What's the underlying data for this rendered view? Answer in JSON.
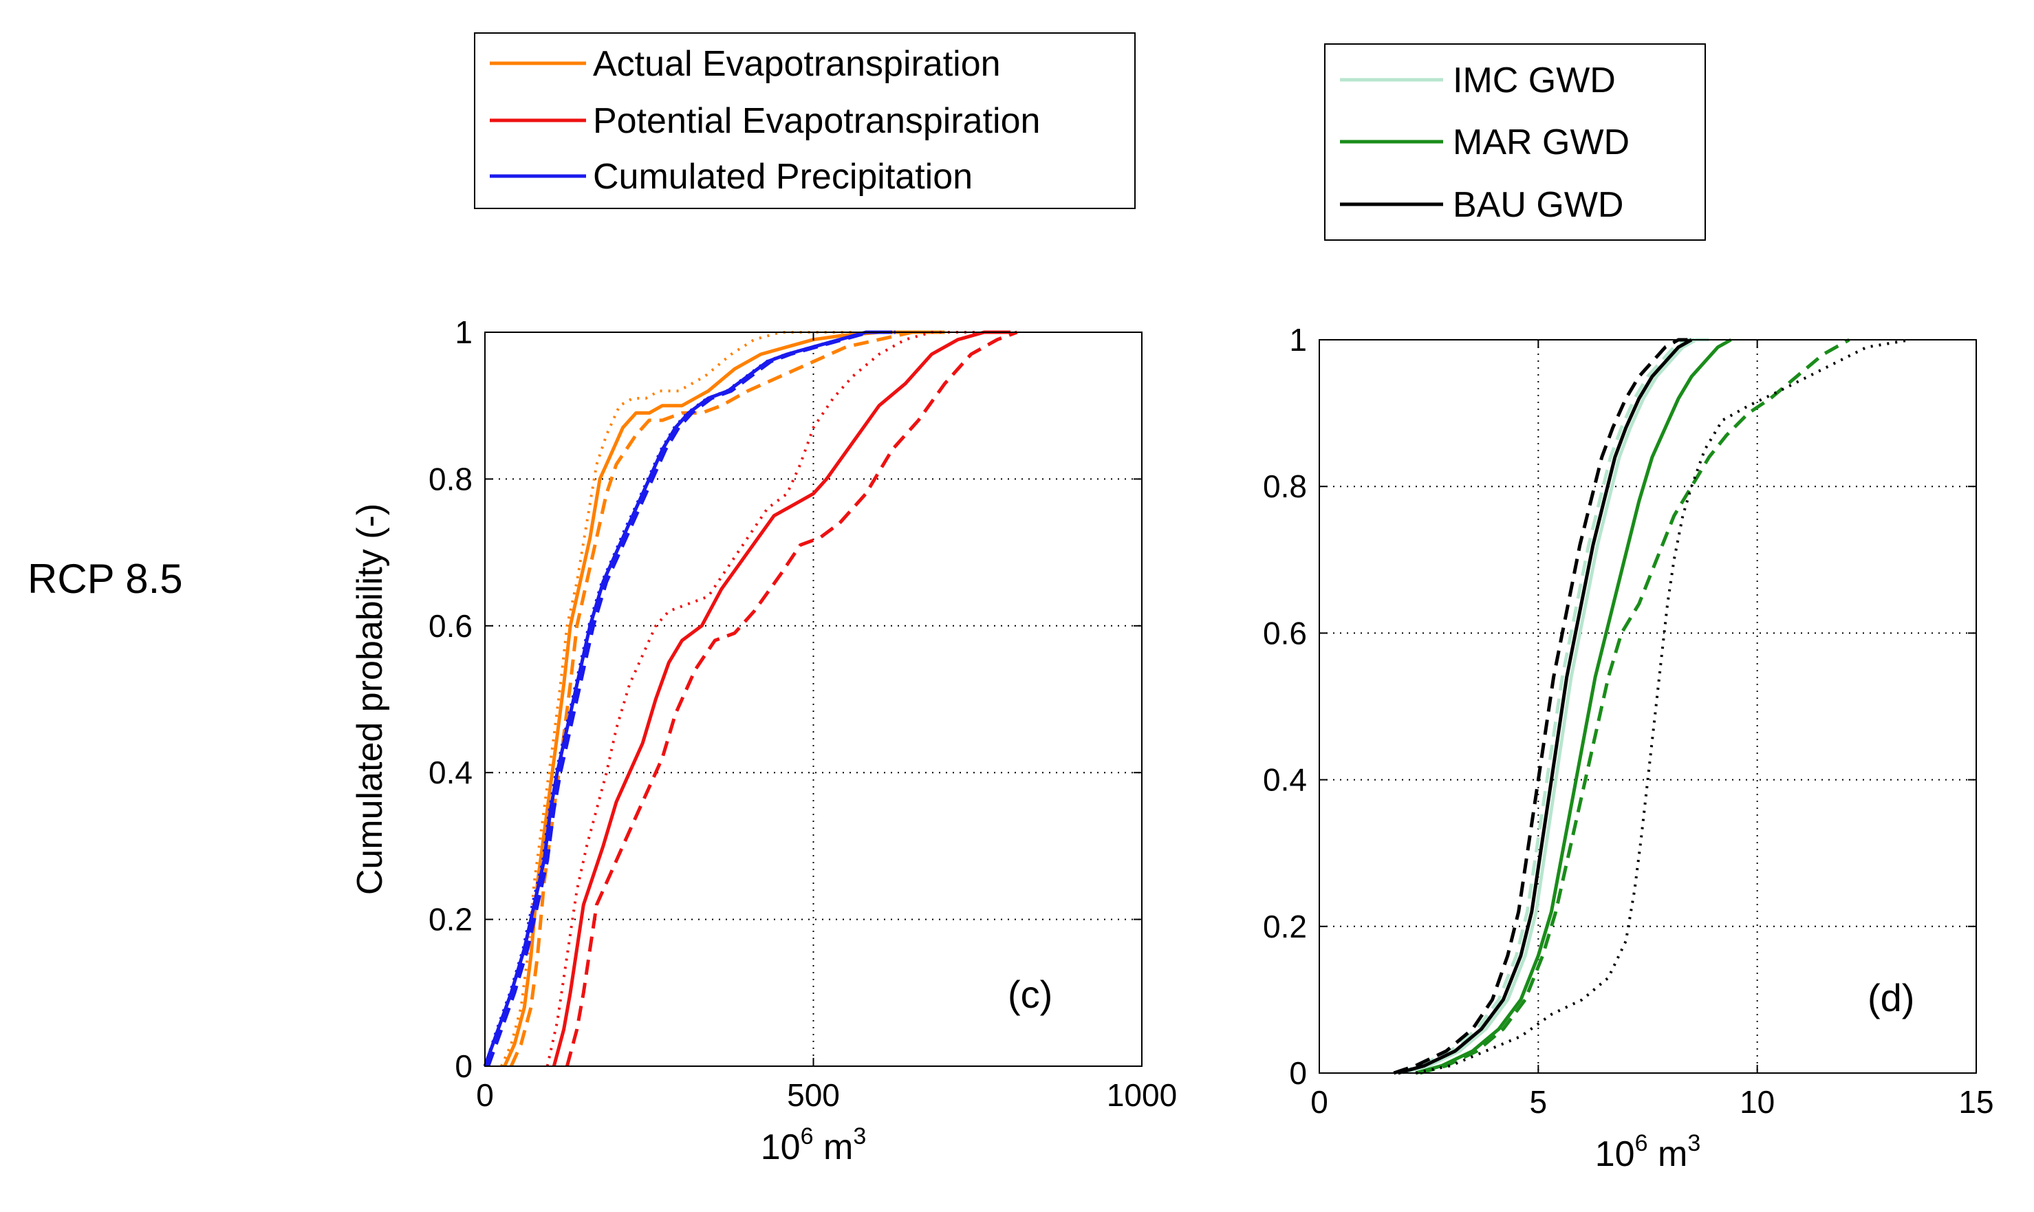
{
  "row_label": "RCP 8.5",
  "chart_data": [
    {
      "type": "line",
      "panel_label": "(c)",
      "xlabel": "10",
      "xlabel_exp": "6",
      "xlabel_unit": "m",
      "xlabel_unit_exp": "3",
      "ylabel": "Cumulated probability (-)",
      "xlim": [
        0,
        1000
      ],
      "ylim": [
        0,
        1
      ],
      "xticks": [
        0,
        500,
        1000
      ],
      "xtick_labels": [
        "0",
        "500",
        "1000"
      ],
      "yticks": [
        0,
        0.2,
        0.4,
        0.6,
        0.8,
        1
      ],
      "ytick_labels": [
        "0",
        "0.2",
        "0.4",
        "0.6",
        "0.8",
        "1"
      ],
      "grid": true,
      "legend": [
        {
          "label": "Actual Evapotranspiration",
          "color": "#ff8000"
        },
        {
          "label": "Potential Evapotranspiration",
          "color": "#ee1111"
        },
        {
          "label": "Cumulated Precipitation",
          "color": "#1a1aee"
        }
      ],
      "series": [
        {
          "name": "AET solid",
          "color": "#ff8000",
          "dash": "solid",
          "x": [
            30,
            45,
            60,
            70,
            80,
            95,
            110,
            120,
            130,
            145,
            160,
            175,
            190,
            200,
            210,
            230,
            250,
            270,
            300,
            320,
            340,
            380,
            420,
            460,
            500,
            540,
            600,
            650,
            700
          ],
          "y": [
            0,
            0.03,
            0.08,
            0.15,
            0.25,
            0.35,
            0.45,
            0.52,
            0.6,
            0.66,
            0.72,
            0.8,
            0.83,
            0.85,
            0.87,
            0.89,
            0.89,
            0.9,
            0.9,
            0.91,
            0.92,
            0.95,
            0.97,
            0.98,
            0.99,
            0.995,
            1,
            1,
            1
          ]
        },
        {
          "name": "AET dashed",
          "color": "#ff8000",
          "dash": "dashed",
          "x": [
            40,
            55,
            70,
            80,
            90,
            105,
            120,
            130,
            140,
            155,
            170,
            185,
            200,
            215,
            230,
            250,
            270,
            300,
            330,
            360,
            400,
            450,
            500,
            550,
            600,
            650,
            700
          ],
          "y": [
            0,
            0.03,
            0.08,
            0.15,
            0.25,
            0.35,
            0.45,
            0.52,
            0.6,
            0.66,
            0.72,
            0.78,
            0.82,
            0.84,
            0.86,
            0.88,
            0.88,
            0.89,
            0.89,
            0.9,
            0.92,
            0.94,
            0.96,
            0.98,
            0.99,
            1,
            1
          ]
        },
        {
          "name": "AET dotted",
          "color": "#ff8000",
          "dash": "dotted",
          "x": [
            25,
            40,
            55,
            65,
            75,
            90,
            105,
            115,
            125,
            140,
            155,
            170,
            185,
            195,
            205,
            225,
            245,
            265,
            295,
            315,
            335,
            375,
            410,
            450,
            490,
            530,
            560
          ],
          "y": [
            0,
            0.03,
            0.08,
            0.15,
            0.25,
            0.35,
            0.45,
            0.52,
            0.6,
            0.66,
            0.74,
            0.82,
            0.86,
            0.88,
            0.9,
            0.91,
            0.91,
            0.92,
            0.92,
            0.93,
            0.94,
            0.97,
            0.99,
            1,
            1,
            1,
            1
          ]
        },
        {
          "name": "PET solid",
          "color": "#ee1111",
          "dash": "solid",
          "x": [
            105,
            120,
            130,
            140,
            150,
            165,
            180,
            200,
            220,
            240,
            260,
            280,
            300,
            330,
            360,
            400,
            440,
            480,
            500,
            520,
            560,
            600,
            640,
            680,
            720,
            760,
            800
          ],
          "y": [
            0,
            0.05,
            0.1,
            0.16,
            0.22,
            0.26,
            0.3,
            0.36,
            0.4,
            0.44,
            0.5,
            0.55,
            0.58,
            0.6,
            0.65,
            0.7,
            0.75,
            0.77,
            0.78,
            0.8,
            0.85,
            0.9,
            0.93,
            0.97,
            0.99,
            1,
            1
          ]
        },
        {
          "name": "PET dashed",
          "color": "#ee1111",
          "dash": "dashed",
          "x": [
            125,
            140,
            150,
            160,
            170,
            190,
            210,
            230,
            250,
            270,
            290,
            320,
            350,
            380,
            410,
            450,
            480,
            510,
            540,
            580,
            620,
            660,
            700,
            740,
            780,
            810
          ],
          "y": [
            0,
            0.05,
            0.1,
            0.16,
            0.22,
            0.26,
            0.3,
            0.34,
            0.38,
            0.42,
            0.48,
            0.54,
            0.58,
            0.59,
            0.62,
            0.67,
            0.71,
            0.72,
            0.74,
            0.78,
            0.84,
            0.88,
            0.93,
            0.97,
            0.99,
            1
          ]
        },
        {
          "name": "PET dotted",
          "color": "#ee1111",
          "dash": "dotted",
          "x": [
            95,
            110,
            120,
            130,
            140,
            155,
            170,
            185,
            200,
            220,
            240,
            260,
            280,
            310,
            340,
            370,
            400,
            430,
            460,
            480,
            500,
            530,
            560,
            600,
            640,
            680,
            720,
            750
          ],
          "y": [
            0,
            0.06,
            0.12,
            0.18,
            0.24,
            0.3,
            0.35,
            0.4,
            0.46,
            0.52,
            0.56,
            0.6,
            0.62,
            0.63,
            0.64,
            0.68,
            0.72,
            0.76,
            0.78,
            0.82,
            0.87,
            0.91,
            0.94,
            0.97,
            0.99,
            1,
            1,
            1
          ]
        },
        {
          "name": "P solid",
          "color": "#1a1aee",
          "dash": "solid",
          "x": [
            0,
            20,
            40,
            60,
            75,
            90,
            100,
            110,
            120,
            130,
            140,
            150,
            160,
            170,
            180,
            190,
            200,
            215,
            230,
            250,
            270,
            290,
            310,
            340,
            370,
            400,
            430,
            460,
            500,
            540,
            580,
            620
          ],
          "y": [
            0,
            0.05,
            0.1,
            0.16,
            0.22,
            0.28,
            0.35,
            0.4,
            0.44,
            0.48,
            0.52,
            0.56,
            0.6,
            0.63,
            0.66,
            0.68,
            0.7,
            0.73,
            0.76,
            0.8,
            0.84,
            0.87,
            0.89,
            0.91,
            0.92,
            0.94,
            0.96,
            0.97,
            0.98,
            0.99,
            1,
            1
          ]
        },
        {
          "name": "P dashed",
          "color": "#1a1aee",
          "dash": "dashed",
          "x": [
            5,
            25,
            45,
            65,
            80,
            95,
            105,
            115,
            125,
            135,
            145,
            155,
            165,
            175,
            185,
            195,
            205,
            220,
            235,
            255,
            275,
            295,
            315,
            345,
            375,
            405,
            435,
            465,
            505,
            545,
            585,
            625
          ],
          "y": [
            0,
            0.05,
            0.1,
            0.16,
            0.22,
            0.28,
            0.35,
            0.4,
            0.44,
            0.48,
            0.52,
            0.56,
            0.6,
            0.63,
            0.66,
            0.68,
            0.7,
            0.73,
            0.76,
            0.8,
            0.84,
            0.87,
            0.89,
            0.91,
            0.92,
            0.94,
            0.96,
            0.97,
            0.98,
            0.99,
            1,
            1
          ]
        },
        {
          "name": "P dotted",
          "color": "#1a1aee",
          "dash": "dotted",
          "x": [
            0,
            18,
            38,
            58,
            72,
            88,
            98,
            108,
            118,
            128,
            138,
            148,
            158,
            168,
            178,
            188,
            198,
            212,
            228,
            248,
            268,
            288,
            308,
            338,
            368,
            398,
            428,
            458,
            498,
            538,
            578,
            618
          ],
          "y": [
            0,
            0.05,
            0.1,
            0.16,
            0.22,
            0.28,
            0.35,
            0.4,
            0.44,
            0.48,
            0.52,
            0.56,
            0.6,
            0.63,
            0.66,
            0.68,
            0.7,
            0.73,
            0.76,
            0.8,
            0.84,
            0.87,
            0.89,
            0.91,
            0.92,
            0.94,
            0.96,
            0.97,
            0.98,
            0.99,
            1,
            1
          ]
        }
      ]
    },
    {
      "type": "line",
      "panel_label": "(d)",
      "xlabel": "10",
      "xlabel_exp": "6",
      "xlabel_unit": "m",
      "xlabel_unit_exp": "3",
      "ylabel": "",
      "xlim": [
        0,
        15
      ],
      "ylim": [
        0,
        1
      ],
      "xticks": [
        0,
        5,
        10,
        15
      ],
      "xtick_labels": [
        "0",
        "5",
        "10",
        "15"
      ],
      "yticks": [
        0,
        0.2,
        0.4,
        0.6,
        0.8,
        1
      ],
      "ytick_labels": [
        "0",
        "0.2",
        "0.4",
        "0.6",
        "0.8",
        "1"
      ],
      "grid": true,
      "legend": [
        {
          "label": "IMC GWD",
          "color": "#b8e6cf"
        },
        {
          "label": "MAR GWD",
          "color": "#1a8c1a"
        },
        {
          "label": "BAU GWD",
          "color": "#000000"
        }
      ],
      "series": [
        {
          "name": "IMC solid",
          "color": "#b8e6cf",
          "dash": "solid",
          "x": [
            1.9,
            2.5,
            3.2,
            3.8,
            4.3,
            4.7,
            4.95,
            5.15,
            5.35,
            5.55,
            5.75,
            5.95,
            6.15,
            6.35,
            6.6,
            6.85,
            7.1,
            7.4,
            7.7,
            8.0,
            8.3,
            8.6,
            8.9
          ],
          "y": [
            0,
            0.01,
            0.03,
            0.06,
            0.1,
            0.16,
            0.22,
            0.3,
            0.38,
            0.46,
            0.54,
            0.6,
            0.66,
            0.72,
            0.78,
            0.84,
            0.88,
            0.92,
            0.95,
            0.97,
            0.99,
            1,
            1
          ]
        },
        {
          "name": "IMC dashed",
          "color": "#b8e6cf",
          "dash": "dashed",
          "x": [
            1.8,
            2.3,
            3.0,
            3.6,
            4.1,
            4.5,
            4.75,
            4.95,
            5.15,
            5.35,
            5.55,
            5.75,
            5.95,
            6.15,
            6.4,
            6.65,
            6.9,
            7.2,
            7.5,
            7.8,
            8.1,
            8.4,
            8.7
          ],
          "y": [
            0,
            0.01,
            0.03,
            0.06,
            0.1,
            0.16,
            0.22,
            0.3,
            0.38,
            0.46,
            0.54,
            0.6,
            0.66,
            0.72,
            0.78,
            0.84,
            0.88,
            0.92,
            0.95,
            0.97,
            0.99,
            1,
            1
          ]
        },
        {
          "name": "MAR solid",
          "color": "#1a8c1a",
          "dash": "solid",
          "x": [
            2.2,
            2.8,
            3.5,
            4.1,
            4.6,
            5.0,
            5.3,
            5.55,
            5.8,
            6.05,
            6.3,
            6.55,
            6.8,
            7.05,
            7.3,
            7.6,
            7.9,
            8.2,
            8.5,
            8.8,
            9.1,
            9.4
          ],
          "y": [
            0,
            0.01,
            0.03,
            0.06,
            0.1,
            0.16,
            0.22,
            0.3,
            0.38,
            0.46,
            0.54,
            0.6,
            0.66,
            0.72,
            0.78,
            0.84,
            0.88,
            0.92,
            0.95,
            0.97,
            0.99,
            1
          ]
        },
        {
          "name": "MAR dashed",
          "color": "#1a8c1a",
          "dash": "dashed",
          "x": [
            2.3,
            2.9,
            3.6,
            4.2,
            4.7,
            5.1,
            5.4,
            5.7,
            6.0,
            6.3,
            6.6,
            6.9,
            7.3,
            7.7,
            8.1,
            8.5,
            8.9,
            9.3,
            9.8,
            10.3,
            10.9,
            11.5,
            12.1
          ],
          "y": [
            0,
            0.01,
            0.03,
            0.06,
            0.1,
            0.16,
            0.22,
            0.3,
            0.38,
            0.46,
            0.54,
            0.6,
            0.64,
            0.7,
            0.76,
            0.8,
            0.84,
            0.87,
            0.9,
            0.92,
            0.95,
            0.98,
            1
          ]
        },
        {
          "name": "BAU solid",
          "color": "#000000",
          "dash": "solid",
          "x": [
            1.8,
            2.4,
            3.1,
            3.7,
            4.2,
            4.6,
            4.85,
            5.05,
            5.25,
            5.45,
            5.65,
            5.85,
            6.05,
            6.25,
            6.5,
            6.75,
            7.0,
            7.3,
            7.6,
            7.9,
            8.2,
            8.5
          ],
          "y": [
            0,
            0.01,
            0.03,
            0.06,
            0.1,
            0.16,
            0.22,
            0.3,
            0.38,
            0.46,
            0.54,
            0.6,
            0.66,
            0.72,
            0.78,
            0.84,
            0.88,
            0.92,
            0.95,
            0.97,
            0.99,
            1
          ]
        },
        {
          "name": "BAU dashed",
          "color": "#000000",
          "dash": "dashed",
          "x": [
            1.7,
            2.2,
            2.9,
            3.5,
            3.95,
            4.3,
            4.55,
            4.75,
            4.95,
            5.15,
            5.35,
            5.55,
            5.75,
            5.95,
            6.2,
            6.45,
            6.7,
            7.0,
            7.3,
            7.6,
            7.9,
            8.2,
            8.5
          ],
          "y": [
            0,
            0.01,
            0.03,
            0.06,
            0.1,
            0.16,
            0.22,
            0.3,
            0.38,
            0.46,
            0.54,
            0.6,
            0.66,
            0.72,
            0.78,
            0.84,
            0.88,
            0.92,
            0.95,
            0.97,
            0.99,
            1,
            1
          ]
        },
        {
          "name": "BAU dotted",
          "color": "#000000",
          "dash": "dotted",
          "x": [
            2.2,
            3.0,
            3.8,
            4.6,
            5.3,
            6.0,
            6.6,
            7.0,
            7.2,
            7.35,
            7.5,
            7.65,
            7.8,
            7.95,
            8.1,
            8.3,
            8.5,
            8.8,
            9.2,
            9.8,
            10.5,
            11.5,
            12.5,
            13.5
          ],
          "y": [
            0,
            0.01,
            0.03,
            0.05,
            0.08,
            0.1,
            0.13,
            0.18,
            0.25,
            0.32,
            0.4,
            0.48,
            0.56,
            0.64,
            0.7,
            0.76,
            0.8,
            0.85,
            0.89,
            0.91,
            0.93,
            0.96,
            0.99,
            1
          ]
        }
      ]
    }
  ]
}
